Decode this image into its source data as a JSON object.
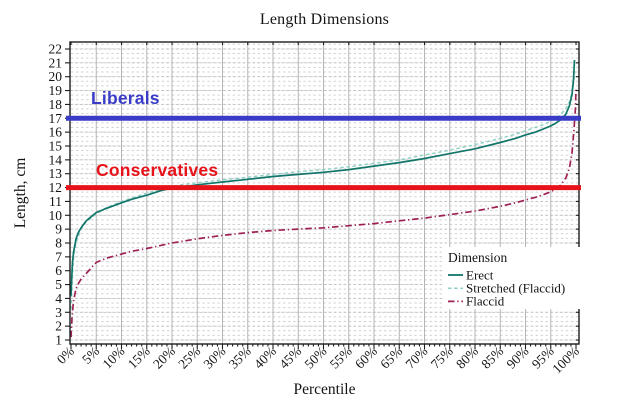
{
  "chart_data": {
    "type": "line",
    "title": "Length Dimensions",
    "xlabel": "Percentile",
    "ylabel": "Length, cm",
    "xlim": [
      0,
      100
    ],
    "ylim": [
      1,
      22
    ],
    "grid": true,
    "x_ticks": [
      "0%",
      "5%",
      "10%",
      "15%",
      "20%",
      "25%",
      "30%",
      "35%",
      "40%",
      "45%",
      "50%",
      "55%",
      "60%",
      "65%",
      "70%",
      "75%",
      "80%",
      "85%",
      "90%",
      "95%",
      "100%"
    ],
    "y_ticks": [
      1,
      2,
      3,
      4,
      5,
      6,
      7,
      8,
      9,
      10,
      11,
      12,
      13,
      14,
      15,
      16,
      17,
      18,
      19,
      20,
      21,
      22
    ],
    "legend": {
      "title": "Dimension",
      "position": "inside-bottom-right"
    },
    "series": [
      {
        "name": "Flaccid",
        "color": "#9e2155",
        "style": "dashdot",
        "points": [
          [
            0,
            1.2
          ],
          [
            0.2,
            2.6
          ],
          [
            0.5,
            3.8
          ],
          [
            1,
            4.7
          ],
          [
            1.5,
            5.1
          ],
          [
            2,
            5.4
          ],
          [
            3,
            5.8
          ],
          [
            4,
            6.2
          ],
          [
            5,
            6.6
          ],
          [
            7,
            6.9
          ],
          [
            10,
            7.2
          ],
          [
            12,
            7.4
          ],
          [
            15,
            7.6
          ],
          [
            20,
            8.0
          ],
          [
            25,
            8.3
          ],
          [
            30,
            8.55
          ],
          [
            35,
            8.75
          ],
          [
            40,
            8.9
          ],
          [
            45,
            9.0
          ],
          [
            50,
            9.1
          ],
          [
            55,
            9.25
          ],
          [
            60,
            9.4
          ],
          [
            65,
            9.6
          ],
          [
            70,
            9.8
          ],
          [
            75,
            10.05
          ],
          [
            80,
            10.3
          ],
          [
            85,
            10.65
          ],
          [
            88,
            10.9
          ],
          [
            90,
            11.1
          ],
          [
            92,
            11.3
          ],
          [
            94,
            11.55
          ],
          [
            95,
            11.7
          ],
          [
            96,
            11.9
          ],
          [
            97,
            12.2
          ],
          [
            98,
            12.7
          ],
          [
            98.7,
            13.4
          ],
          [
            99.2,
            14.5
          ],
          [
            99.6,
            16.2
          ],
          [
            99.9,
            17.8
          ],
          [
            100,
            19.2
          ]
        ]
      },
      {
        "name": "Stretched (Flaccid)",
        "color": "#8fd0c6",
        "style": "dashed",
        "points": [
          [
            0,
            3.2
          ],
          [
            0.2,
            4.8
          ],
          [
            0.5,
            6.9
          ],
          [
            1,
            8.0
          ],
          [
            2,
            9.0
          ],
          [
            3,
            9.5
          ],
          [
            5,
            10.1
          ],
          [
            7,
            10.55
          ],
          [
            10,
            11.0
          ],
          [
            15,
            11.6
          ],
          [
            20,
            12.1
          ],
          [
            25,
            12.35
          ],
          [
            30,
            12.55
          ],
          [
            35,
            12.75
          ],
          [
            40,
            12.95
          ],
          [
            45,
            13.15
          ],
          [
            50,
            13.3
          ],
          [
            55,
            13.5
          ],
          [
            60,
            13.75
          ],
          [
            65,
            14.0
          ],
          [
            70,
            14.35
          ],
          [
            75,
            14.7
          ],
          [
            80,
            15.1
          ],
          [
            85,
            15.55
          ],
          [
            88,
            15.85
          ],
          [
            90,
            16.1
          ],
          [
            92,
            16.35
          ],
          [
            94,
            16.6
          ],
          [
            95,
            16.8
          ],
          [
            96,
            17.0
          ],
          [
            97,
            17.3
          ],
          [
            98,
            17.7
          ],
          [
            98.7,
            18.2
          ],
          [
            99.2,
            18.9
          ],
          [
            99.5,
            19.5
          ],
          [
            99.8,
            20.4
          ]
        ]
      },
      {
        "name": "Erect",
        "color": "#12756a",
        "style": "solid",
        "points": [
          [
            0,
            4.2
          ],
          [
            0.1,
            5.2
          ],
          [
            0.3,
            6.6
          ],
          [
            0.5,
            7.3
          ],
          [
            1,
            8.3
          ],
          [
            1.5,
            8.8
          ],
          [
            2,
            9.1
          ],
          [
            3,
            9.6
          ],
          [
            4,
            9.9
          ],
          [
            5,
            10.2
          ],
          [
            7,
            10.5
          ],
          [
            10,
            10.9
          ],
          [
            12,
            11.15
          ],
          [
            15,
            11.45
          ],
          [
            18,
            11.8
          ],
          [
            20,
            11.95
          ],
          [
            25,
            12.2
          ],
          [
            30,
            12.4
          ],
          [
            35,
            12.6
          ],
          [
            40,
            12.8
          ],
          [
            45,
            12.95
          ],
          [
            50,
            13.1
          ],
          [
            55,
            13.3
          ],
          [
            60,
            13.55
          ],
          [
            65,
            13.8
          ],
          [
            70,
            14.1
          ],
          [
            75,
            14.45
          ],
          [
            80,
            14.8
          ],
          [
            85,
            15.25
          ],
          [
            88,
            15.55
          ],
          [
            90,
            15.8
          ],
          [
            92,
            16.0
          ],
          [
            94,
            16.3
          ],
          [
            95,
            16.45
          ],
          [
            96,
            16.65
          ],
          [
            97,
            16.9
          ],
          [
            98,
            17.3
          ],
          [
            98.7,
            17.9
          ],
          [
            99.2,
            18.7
          ],
          [
            99.5,
            19.8
          ],
          [
            99.7,
            21.2
          ]
        ]
      }
    ],
    "reference_lines": [
      {
        "label": "Liberals",
        "y": 17,
        "color": "#3a3cc8"
      },
      {
        "label": "Conservatives",
        "y": 12,
        "color": "#e8121a"
      }
    ]
  }
}
